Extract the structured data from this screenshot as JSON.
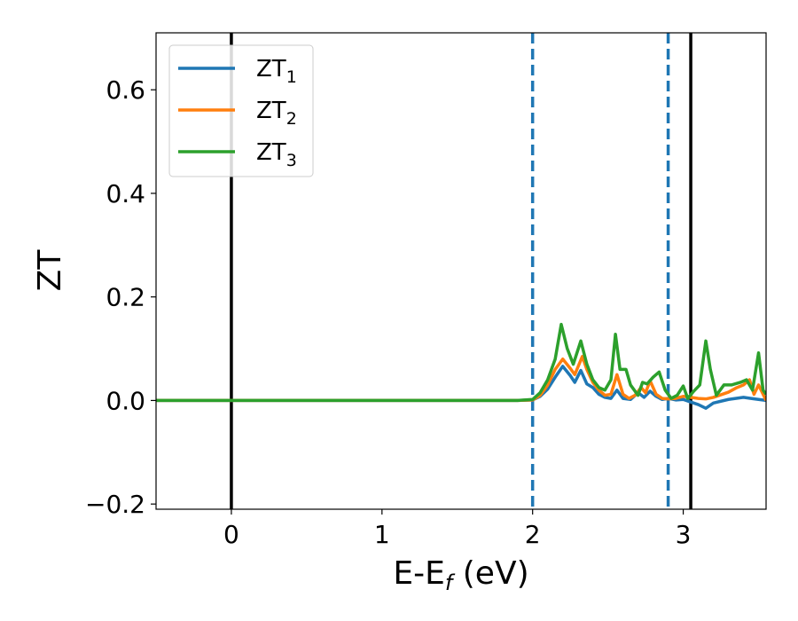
{
  "chart_data": {
    "type": "line",
    "xlabel": {
      "main": "E-E",
      "sub": "f",
      "suffix": " (eV)"
    },
    "ylabel": "ZT",
    "xlim": [
      -0.5,
      3.55
    ],
    "ylim": [
      -0.21,
      0.71
    ],
    "xticks": [
      0,
      1,
      2,
      3
    ],
    "xtick_labels": [
      "0",
      "1",
      "2",
      "3"
    ],
    "yticks": [
      -0.2,
      0.0,
      0.2,
      0.4,
      0.6
    ],
    "ytick_labels": [
      "−0.2",
      "0.0",
      "0.2",
      "0.4",
      "0.6"
    ],
    "grid": false,
    "legend_position": "top-left",
    "vlines": [
      {
        "x": 0.0,
        "style": "solid",
        "color": "#000000"
      },
      {
        "x": 2.0,
        "style": "dashed",
        "color": "#1f77b4"
      },
      {
        "x": 2.9,
        "style": "dashed",
        "color": "#1f77b4"
      },
      {
        "x": 3.05,
        "style": "solid",
        "color": "#000000"
      }
    ],
    "series": [
      {
        "name": "ZT",
        "name_sub": "1",
        "color": "#1f77b4",
        "points": [
          [
            -0.5,
            0.0
          ],
          [
            1.9,
            0.0
          ],
          [
            2.0,
            0.001
          ],
          [
            2.05,
            0.008
          ],
          [
            2.1,
            0.022
          ],
          [
            2.15,
            0.045
          ],
          [
            2.2,
            0.066
          ],
          [
            2.25,
            0.048
          ],
          [
            2.28,
            0.035
          ],
          [
            2.32,
            0.058
          ],
          [
            2.36,
            0.032
          ],
          [
            2.4,
            0.025
          ],
          [
            2.44,
            0.012
          ],
          [
            2.48,
            0.006
          ],
          [
            2.52,
            0.004
          ],
          [
            2.56,
            0.02
          ],
          [
            2.6,
            0.004
          ],
          [
            2.65,
            0.002
          ],
          [
            2.7,
            0.015
          ],
          [
            2.74,
            0.006
          ],
          [
            2.78,
            0.018
          ],
          [
            2.82,
            0.008
          ],
          [
            2.86,
            0.002
          ],
          [
            2.9,
            0.004
          ],
          [
            2.95,
            0.001
          ],
          [
            3.0,
            0.002
          ],
          [
            3.05,
            -0.003
          ],
          [
            3.1,
            -0.008
          ],
          [
            3.15,
            -0.015
          ],
          [
            3.2,
            -0.005
          ],
          [
            3.3,
            0.002
          ],
          [
            3.4,
            0.006
          ],
          [
            3.45,
            0.004
          ],
          [
            3.5,
            0.002
          ],
          [
            3.55,
            0.0
          ]
        ]
      },
      {
        "name": "ZT",
        "name_sub": "2",
        "color": "#ff7f0e",
        "points": [
          [
            -0.5,
            0.0
          ],
          [
            1.9,
            0.0
          ],
          [
            2.0,
            0.001
          ],
          [
            2.05,
            0.01
          ],
          [
            2.1,
            0.03
          ],
          [
            2.15,
            0.06
          ],
          [
            2.2,
            0.08
          ],
          [
            2.25,
            0.062
          ],
          [
            2.28,
            0.05
          ],
          [
            2.33,
            0.085
          ],
          [
            2.36,
            0.06
          ],
          [
            2.4,
            0.035
          ],
          [
            2.44,
            0.02
          ],
          [
            2.48,
            0.01
          ],
          [
            2.52,
            0.012
          ],
          [
            2.56,
            0.05
          ],
          [
            2.6,
            0.012
          ],
          [
            2.64,
            0.004
          ],
          [
            2.68,
            0.01
          ],
          [
            2.72,
            0.025
          ],
          [
            2.75,
            0.015
          ],
          [
            2.78,
            0.038
          ],
          [
            2.82,
            0.012
          ],
          [
            2.86,
            0.004
          ],
          [
            2.9,
            0.003
          ],
          [
            2.95,
            0.004
          ],
          [
            3.0,
            0.008
          ],
          [
            3.05,
            0.006
          ],
          [
            3.1,
            0.004
          ],
          [
            3.15,
            0.003
          ],
          [
            3.2,
            0.006
          ],
          [
            3.3,
            0.016
          ],
          [
            3.35,
            0.024
          ],
          [
            3.4,
            0.03
          ],
          [
            3.44,
            0.04
          ],
          [
            3.47,
            0.012
          ],
          [
            3.5,
            0.03
          ],
          [
            3.55,
            0.0
          ]
        ]
      },
      {
        "name": "ZT",
        "name_sub": "3",
        "color": "#2ca02c",
        "points": [
          [
            -0.5,
            0.0
          ],
          [
            1.9,
            0.0
          ],
          [
            2.0,
            0.002
          ],
          [
            2.05,
            0.015
          ],
          [
            2.1,
            0.04
          ],
          [
            2.15,
            0.08
          ],
          [
            2.19,
            0.147
          ],
          [
            2.23,
            0.1
          ],
          [
            2.27,
            0.07
          ],
          [
            2.32,
            0.115
          ],
          [
            2.36,
            0.07
          ],
          [
            2.4,
            0.04
          ],
          [
            2.44,
            0.025
          ],
          [
            2.48,
            0.02
          ],
          [
            2.52,
            0.04
          ],
          [
            2.55,
            0.128
          ],
          [
            2.58,
            0.06
          ],
          [
            2.62,
            0.06
          ],
          [
            2.65,
            0.03
          ],
          [
            2.7,
            0.01
          ],
          [
            2.73,
            0.035
          ],
          [
            2.76,
            0.032
          ],
          [
            2.8,
            0.045
          ],
          [
            2.84,
            0.055
          ],
          [
            2.88,
            0.02
          ],
          [
            2.92,
            0.004
          ],
          [
            2.96,
            0.01
          ],
          [
            3.0,
            0.028
          ],
          [
            3.03,
            0.004
          ],
          [
            3.07,
            0.018
          ],
          [
            3.11,
            0.03
          ],
          [
            3.15,
            0.115
          ],
          [
            3.18,
            0.06
          ],
          [
            3.22,
            0.01
          ],
          [
            3.27,
            0.03
          ],
          [
            3.32,
            0.03
          ],
          [
            3.38,
            0.035
          ],
          [
            3.42,
            0.04
          ],
          [
            3.46,
            0.02
          ],
          [
            3.5,
            0.092
          ],
          [
            3.53,
            0.02
          ],
          [
            3.55,
            0.012
          ]
        ]
      }
    ]
  }
}
